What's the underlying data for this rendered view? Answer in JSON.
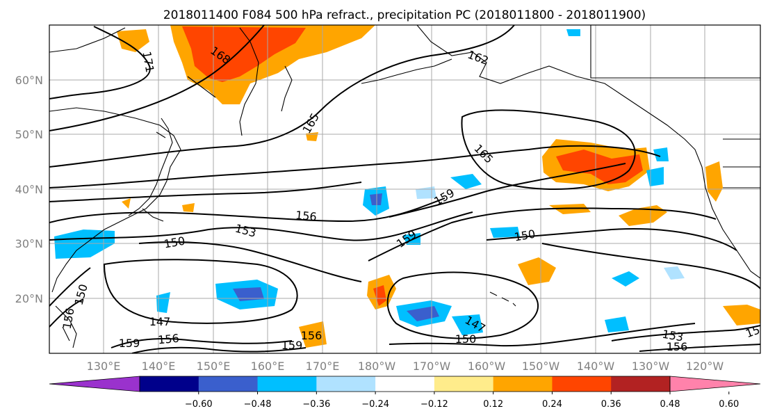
{
  "title": "2018011400 F084 500 hPa refract., precipitation PC (2018011800 - 2018011900)",
  "lat_labels": [
    "60°N",
    "50°N",
    "40°N",
    "30°N",
    "20°N"
  ],
  "lon_labels": [
    "130°E",
    "140°E",
    "150°E",
    "160°E",
    "170°E",
    "180°W",
    "170°W",
    "160°W",
    "150°W",
    "140°W",
    "130°W",
    "120°W"
  ],
  "colorbar": {
    "ticks": [
      "−0.60",
      "−0.48",
      "−0.36",
      "−0.24",
      "−0.12",
      "0.12",
      "0.24",
      "0.36",
      "0.48",
      "0.60"
    ],
    "colors": [
      "#9a32cd",
      "#00008b",
      "#3a5fcd",
      "#00bfff",
      "#b0e2ff",
      "#ffffff",
      "#ffec8b",
      "#ffa500",
      "#ff4500",
      "#b22222",
      "#ff82ab"
    ]
  },
  "contour_labels": [
    "171",
    "168",
    "162",
    "165",
    "165",
    "159",
    "159",
    "156",
    "153",
    "150",
    "150",
    "150",
    "147",
    "147",
    "156",
    "156",
    "159",
    "153",
    "156",
    "150",
    "156",
    "159",
    "15"
  ],
  "fill_colors": {
    "pos1": "#ffec8b",
    "pos2": "#ffa500",
    "pos3": "#ff4500",
    "pos4": "#b22222",
    "neg1": "#b0e2ff",
    "neg2": "#00bfff",
    "neg3": "#3a5fcd",
    "neg4": "#00008b"
  }
}
